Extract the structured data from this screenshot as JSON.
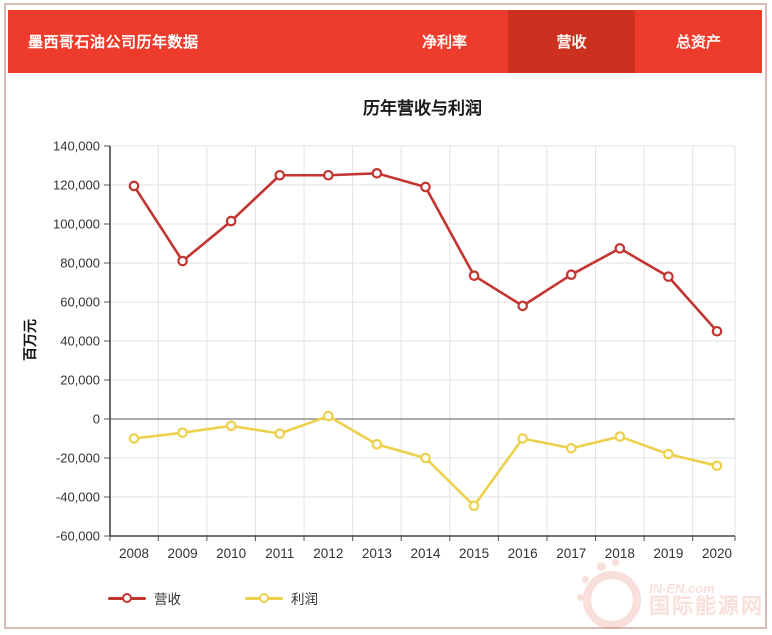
{
  "header": {
    "title": "墨西哥石油公司历年数据",
    "tabs": [
      {
        "label": "净利率",
        "active": false
      },
      {
        "label": "营收",
        "active": true
      },
      {
        "label": "总资产",
        "active": false
      }
    ]
  },
  "colors": {
    "header_bg": "#ee3c2c",
    "active_tab_bg": "#cc3120",
    "revenue_line": "#c23531",
    "profit_line": "#edd04b",
    "grid": "#e2e2e2",
    "zero_line": "#8f8f8f",
    "axis": "#444444"
  },
  "chart_data": {
    "type": "line",
    "title": "历年营收与利润",
    "xlabel": "",
    "ylabel": "百万元",
    "categories": [
      "2008",
      "2009",
      "2010",
      "2011",
      "2012",
      "2013",
      "2014",
      "2015",
      "2016",
      "2017",
      "2018",
      "2019",
      "2020"
    ],
    "series": [
      {
        "name": "营收",
        "color": "#c23531",
        "values": [
          119500,
          81000,
          101500,
          125000,
          125000,
          126000,
          119000,
          73500,
          58000,
          74000,
          87500,
          73000,
          45000
        ]
      },
      {
        "name": "利润",
        "color": "#edd04b",
        "values": [
          -10000,
          -7000,
          -3500,
          -7500,
          1500,
          -13000,
          -20000,
          -44500,
          -10000,
          -15000,
          -9000,
          -18000,
          -24000
        ]
      }
    ],
    "ylim": [
      -60000,
      140000
    ],
    "ytick_step": 20000,
    "grid": true,
    "legend_position": "bottom-left"
  },
  "watermark": {
    "line1": "IN-EN.com",
    "line2": "国际能源网"
  }
}
